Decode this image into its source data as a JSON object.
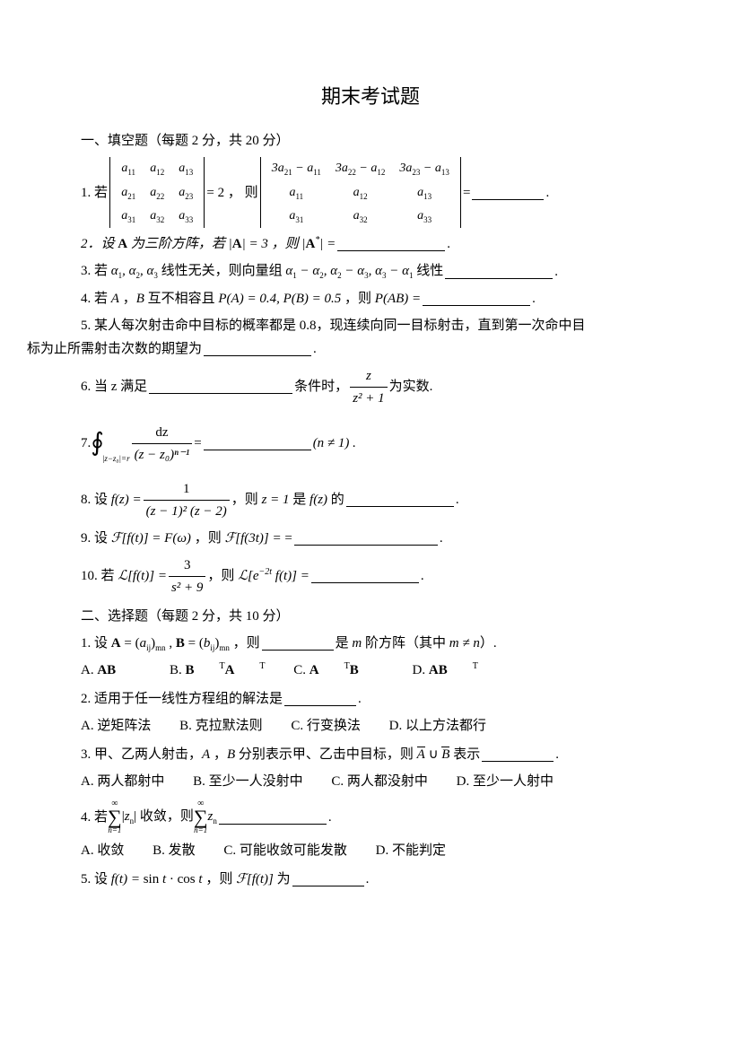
{
  "title": "期末考试题",
  "section1_header": "一、填空题（每题 2 分，共 20 分）",
  "q1_pre": "1. 若",
  "q1_det1": [
    [
      "a",
      "11",
      "a",
      "12",
      "a",
      "13"
    ],
    [
      "a",
      "21",
      "a",
      "22",
      "a",
      "23"
    ],
    [
      "a",
      "31",
      "a",
      "32",
      "a",
      "33"
    ]
  ],
  "q1_eq": "= 2 ， 则",
  "q1_det2_r1": [
    "3a₍₂₁₎ − a₍₁₁₎",
    "3a₍₂₂₎ − a₍₁₂₎",
    "3a₍₂₃₎ − a₍₁₃₎"
  ],
  "q1_det2": [
    [
      "a",
      "11",
      "a",
      "12",
      "a",
      "13"
    ],
    [
      "a",
      "31",
      "a",
      "32",
      "a",
      "33"
    ]
  ],
  "q1_post": "=",
  "q2": "2．设 A 为三阶方阵，若 |A| = 3 ，则 |A*| =",
  "q3_pre": "3. 若 α₁, α₂, α₃ 线性无关，则向量组 α₁ − α₂, α₂ − α₃, α₃ − α₁ 线性",
  "q4": "4. 若 A ，B 互不相容且 P(A) = 0.4, P(B) = 0.5 ，则 P(AB) =",
  "q5a": "5. 某人每次射击命中目标的概率都是 0.8，现连续向同一目标射击，直到第一次命中目",
  "q5b": "标为止所需射击次数的期望为",
  "q6a": "6. 当 z 满足",
  "q6b": "条件时，",
  "q6c": "为实数.",
  "q6_num": "z",
  "q6_den": "z² + 1",
  "q7_pre": "7.",
  "q7_sub": "|z−z₀|=r",
  "q7_num": "dz",
  "q7_den": "(z − z₀)ⁿ⁻¹",
  "q7_eq": "=",
  "q7_cond": "(n ≠ 1) .",
  "q8_pre": "8. 设 f(z) =",
  "q8_num": "1",
  "q8_den": "(z − 1)² (z − 2)",
  "q8_post": "，则 z = 1 是 f(z) 的",
  "q9": "9. 设 ℱ[f(t)] = F(ω) ，则 ℱ[f(3t)] = =",
  "q10_pre": "10. 若 ℒ[f(t)] =",
  "q10_num": "3",
  "q10_den": "s² + 9",
  "q10_post": "，则 ℒ[e⁻²ᵗ f(t)] =",
  "section2_header": "二、选择题（每题 2 分，共 10 分）",
  "s2q1": "1. 设 A = (aᵢⱼ)ₘₙ , B = (bᵢⱼ)ₘₙ ，则",
  "s2q1b": "是 m 阶方阵（其中 m ≠ n）.",
  "s2q1_opts": [
    "A. AB",
    "B. BᵀAᵀ",
    "C. AᵀB",
    "D. ABᵀ"
  ],
  "s2q2": "2. 适用于任一线性方程组的解法是",
  "s2q2_opts": [
    "A. 逆矩阵法",
    "B. 克拉默法则",
    "C. 行变换法",
    "D. 以上方法都行"
  ],
  "s2q3": "3. 甲、乙两人射击，A ，B 分别表示甲、乙击中目标，则 ",
  "s2q3b": " 表示",
  "s2q3_over": "A ∪ B",
  "s2q3_opts": [
    "A. 两人都射中",
    "B. 至少一人没射中",
    "C. 两人都没射中",
    "D. 至少一人射中"
  ],
  "s2q4_pre": "4. 若",
  "s2q4_mid": "|zₙ| 收敛，则",
  "s2q4_post": "zₙ",
  "s2q4_opts": [
    "A. 收敛",
    "B. 发散",
    "C. 可能收敛可能发散",
    "D. 不能判定"
  ],
  "s2q5": "5. 设 f(t) = sin t · cos t ，则 ℱ[f(t)] 为",
  "sum_top": "∞",
  "sum_bot": "n=1",
  "colors": {
    "text": "#000000",
    "bg": "#ffffff"
  },
  "fonts": {
    "body": "SimSun",
    "math": "Times New Roman",
    "body_size": 15,
    "title_size": 22
  }
}
